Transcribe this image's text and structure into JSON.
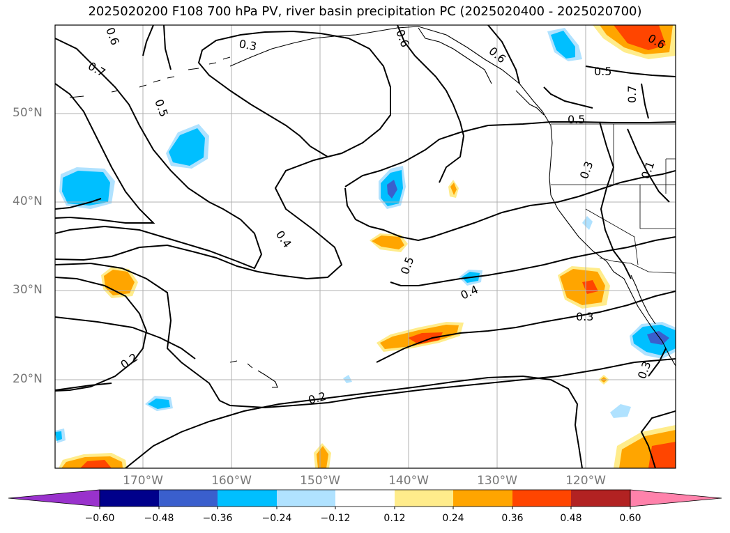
{
  "title": "2025020200 F108 700 hPa PV, river basin precipitation PC (2025020400 - 2025020700)",
  "axes": {
    "lat_labels": [
      "50°N",
      "40°N",
      "30°N",
      "20°N"
    ],
    "lon_labels": [
      "170°W",
      "160°W",
      "150°W",
      "140°W",
      "130°W",
      "120°W"
    ]
  },
  "contour_labels": [
    "0.7",
    "0.6",
    "0.5",
    "0.3",
    "0.6",
    "0.6",
    "0.5",
    "0.6",
    "0.7",
    "0.5",
    "0.3",
    "0.1",
    "0.4",
    "0.5",
    "0.4",
    "0.3",
    "0.2",
    "0.2",
    "0.3"
  ],
  "colorbar": {
    "ticks": [
      "−0.60",
      "−0.48",
      "−0.36",
      "−0.24",
      "−0.12",
      "0.12",
      "0.24",
      "0.36",
      "0.48",
      "0.60"
    ],
    "colors": [
      "#9932cc",
      "#00008b",
      "#3a5fcd",
      "#00bfff",
      "#b0e2ff",
      "#ffffff",
      "#ffec8b",
      "#ffa500",
      "#ff4500",
      "#b22222",
      "#ff82ab"
    ]
  }
}
